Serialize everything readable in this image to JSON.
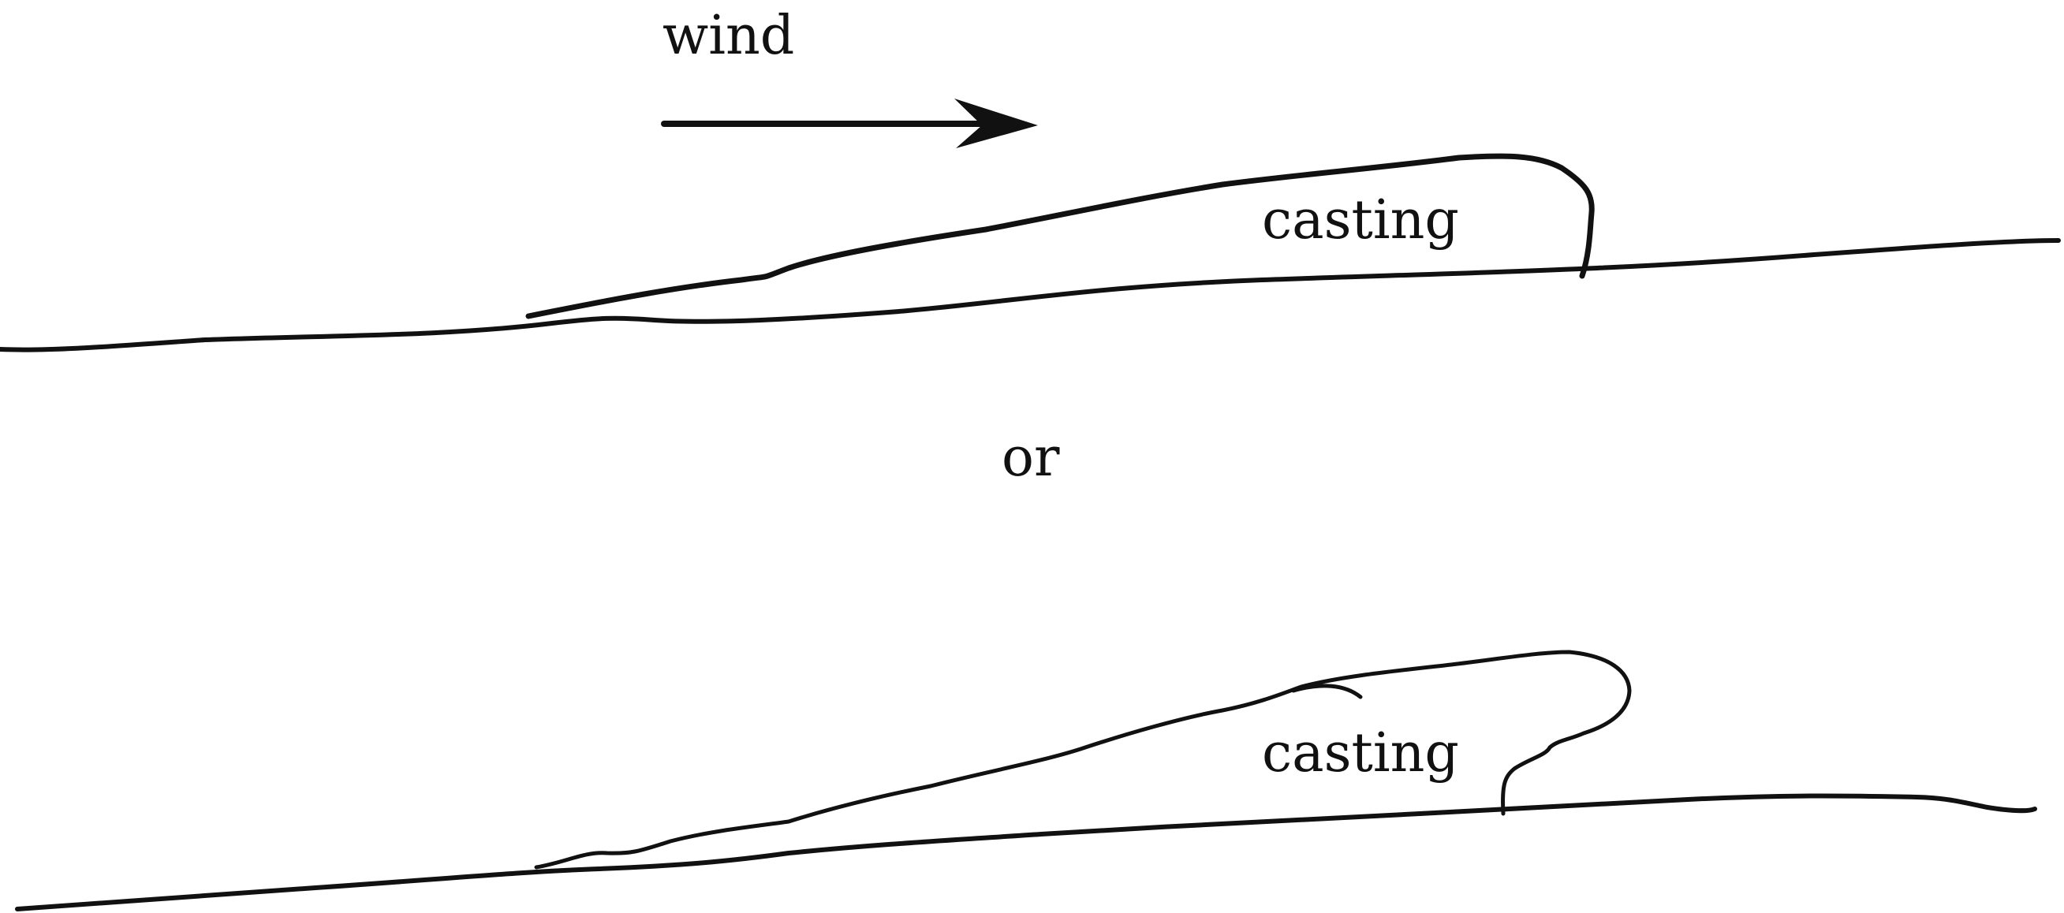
{
  "labels": {
    "wind": "wind",
    "top_casting": "casting",
    "or": "or",
    "bottom_casting": "casting"
  },
  "colors": {
    "ink": "#111111",
    "background": "#ffffff"
  }
}
